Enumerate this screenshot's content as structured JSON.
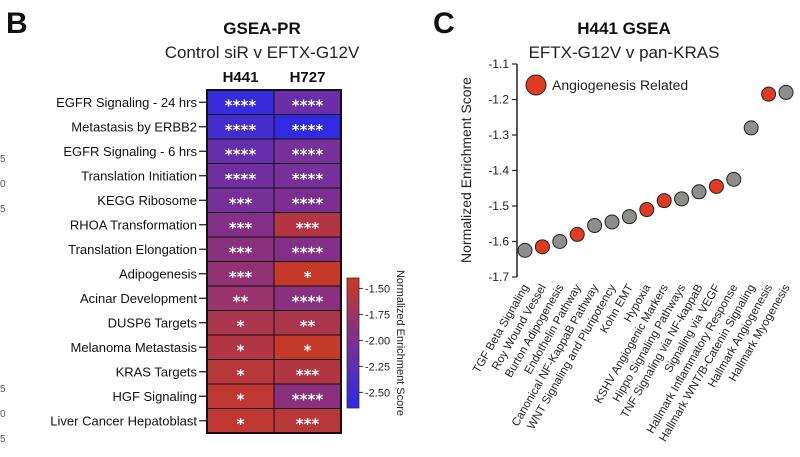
{
  "panels": {
    "left": {
      "letter": "B",
      "edge_ticks_top": [
        "5",
        "0",
        "5"
      ],
      "edge_ticks_bottom": [
        "5",
        "0",
        "5"
      ]
    },
    "right": {
      "letter": "C"
    }
  },
  "chart_data": [
    {
      "type": "heatmap",
      "title": "GSEA-PR",
      "subtitle": "Control siR v EFTX-G12V",
      "columns": [
        "H441",
        "H727"
      ],
      "rows": [
        "EGFR Signaling - 24 hrs",
        "Metastasis by ERBB2",
        "EGFR Signaling - 6 hrs",
        "Translation Initiation",
        "KEGG Ribosome",
        "RHOA Transformation",
        "Translation Elongation",
        "Adipogenesis",
        "Acinar Development",
        "DUSP6 Targets",
        "Melanoma Metastasis",
        "KRAS Targets",
        "HGF Signaling",
        "Liver Cancer Hepatoblast"
      ],
      "values": [
        [
          -2.55,
          -2.15
        ],
        [
          -2.45,
          -2.6
        ],
        [
          -2.2,
          -2.05
        ],
        [
          -2.1,
          -2.05
        ],
        [
          -2.05,
          -2.0
        ],
        [
          -1.95,
          -1.6
        ],
        [
          -1.9,
          -1.95
        ],
        [
          -1.85,
          -1.45
        ],
        [
          -1.8,
          -1.9
        ],
        [
          -1.65,
          -1.65
        ],
        [
          -1.6,
          -1.45
        ],
        [
          -1.55,
          -1.6
        ],
        [
          -1.5,
          -1.9
        ],
        [
          -1.5,
          -1.55
        ]
      ],
      "significance": [
        [
          "****",
          "****"
        ],
        [
          "****",
          "****"
        ],
        [
          "****",
          "****"
        ],
        [
          "****",
          "****"
        ],
        [
          "***",
          "****"
        ],
        [
          "***",
          "***"
        ],
        [
          "***",
          "****"
        ],
        [
          "***",
          "*"
        ],
        [
          "**",
          "****"
        ],
        [
          "*",
          "**"
        ],
        [
          "*",
          "*"
        ],
        [
          "*",
          "***"
        ],
        [
          "*",
          "****"
        ],
        [
          "*",
          "***"
        ]
      ],
      "colorbar": {
        "label": "Normalized Enrichment Score",
        "ticks": [
          "-1.50",
          "-1.75",
          "-2.00",
          "-2.25",
          "-2.50"
        ],
        "tick_values": [
          -1.5,
          -1.75,
          -2.0,
          -2.25,
          -2.5
        ],
        "range": [
          -2.65,
          -1.4
        ],
        "low_color": "#2a2ae8",
        "mid_color": "#7a2f96",
        "high_color": "#cc3a1e"
      }
    },
    {
      "type": "scatter",
      "title": "H441 GSEA",
      "subtitle": "EFTX-G12V v pan-KRAS",
      "ylabel": "Normalized Enrichment Score",
      "ylim": [
        -1.7,
        -1.1
      ],
      "yticks": [
        "-1.1",
        "-1.2",
        "-1.3",
        "-1.4",
        "-1.5",
        "-1.6",
        "-1.7"
      ],
      "ytick_values": [
        -1.1,
        -1.2,
        -1.3,
        -1.4,
        -1.5,
        -1.6,
        -1.7
      ],
      "legend": "Angiogenesis Related",
      "related_color": "#e03a22",
      "other_color": "#8e8e8c",
      "categories": [
        "TGF Beta Signaling",
        "Roy Wound Vessel",
        "Burton Adipogenesis",
        "Endothelin Pathway",
        "Canonical NF-KappaB Pathway",
        "WNT Signaling and Pluripotency",
        "Kohn EMT",
        "Hypoxia",
        "KSHV Angiogenic Markers",
        "Hippo Signaling Pathways",
        "TNF Signaling via NF-kappaB",
        "Signaling via VEGF",
        "Hallmark Inflammatory Response",
        "Hallmark WNT/B-Catenin Signaling",
        "Hallmark Angiogenesis",
        "Hallmark Myogenesis"
      ],
      "values": [
        -1.625,
        -1.615,
        -1.6,
        -1.58,
        -1.555,
        -1.545,
        -1.53,
        -1.51,
        -1.485,
        -1.48,
        -1.46,
        -1.445,
        -1.425,
        -1.28,
        -1.185,
        -1.18
      ],
      "angiogenesis_related": [
        false,
        true,
        false,
        true,
        false,
        false,
        false,
        true,
        true,
        false,
        false,
        true,
        false,
        false,
        true,
        false
      ]
    }
  ]
}
